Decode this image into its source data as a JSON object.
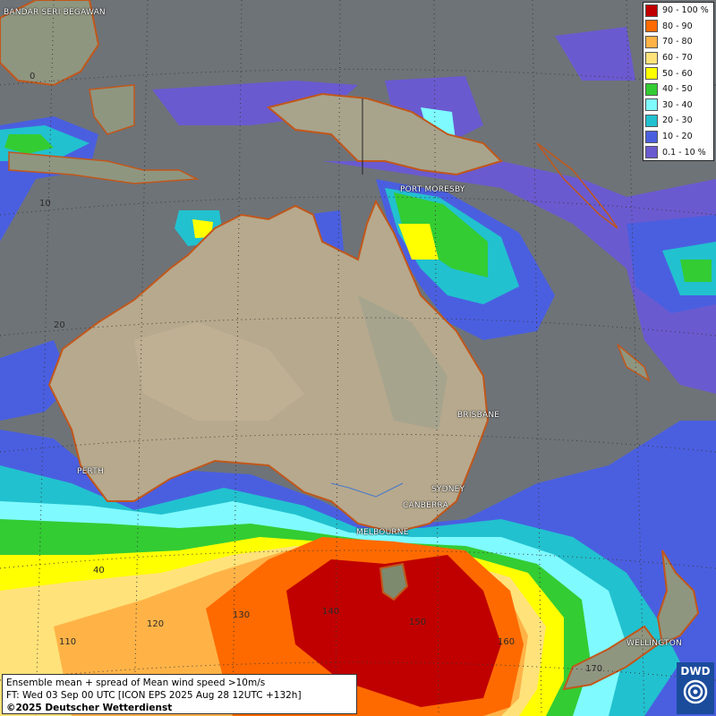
{
  "legend": {
    "items": [
      {
        "label": "90 - 100 %",
        "color": "#c00000"
      },
      {
        "label": "80 - 90",
        "color": "#ff6a00"
      },
      {
        "label": "70 - 80",
        "color": "#ffb347"
      },
      {
        "label": "60 - 70",
        "color": "#ffe27a"
      },
      {
        "label": "50 - 60",
        "color": "#ffff00"
      },
      {
        "label": "40 - 50",
        "color": "#33cc33"
      },
      {
        "label": "30 - 40",
        "color": "#7ffaff"
      },
      {
        "label": "20 - 30",
        "color": "#22c1cf"
      },
      {
        "label": "10 - 20",
        "color": "#4a5fe0"
      },
      {
        "label": "0.1 - 10 %",
        "color": "#6a5ad0"
      }
    ]
  },
  "info": {
    "line1": "Ensemble mean + spread of Mean wind speed >10m/s",
    "line2": "FT: Wed 03 Sep 00 UTC [ICON EPS 2025 Aug 28 12UTC +132h]",
    "copyright": "©2025 Deutscher Wetterdienst"
  },
  "logo": {
    "text": "DWD"
  },
  "cities": {
    "bandar": "BANDAR SERI BEGAWAN",
    "port_moresby": "PORT MORESBY",
    "brisbane": "BRISBANE",
    "sydney": "SYDNEY",
    "canberra": "CANBERRA",
    "melbourne": "MELBOURNE",
    "perth": "PERTH",
    "wellington": "WELLINGTON"
  },
  "grid_labels": {
    "lat0": "0",
    "lat10": "10",
    "lat20": "20",
    "lat40": "40",
    "lon110": "110",
    "lon120": "120",
    "lon130": "130",
    "lon140": "140",
    "lon150": "150",
    "lon160": "160",
    "lon170": "170"
  }
}
